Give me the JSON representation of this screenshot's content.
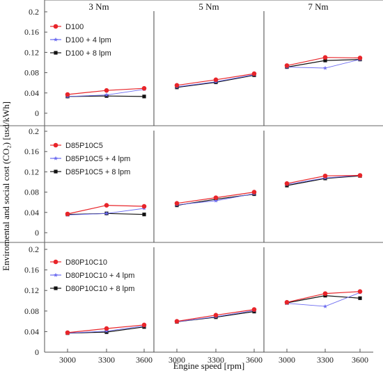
{
  "chart_data": {
    "type": "line",
    "ylabel": "Enviromental and social cost (CO₂) [usd/kWh]",
    "xlabel": "Engine speed [rpm]",
    "column_titles": [
      "3 Nm",
      "5 Nm",
      "7 Nm"
    ],
    "x_ticks": [
      "3000",
      "3300",
      "3600"
    ],
    "y_ticks": [
      "0",
      "0.04",
      "0.08",
      "0.12",
      "0.16",
      "0.2"
    ],
    "ylim": [
      0,
      0.2
    ],
    "legend_position": "top-left",
    "series_colors": [
      "#e8252a",
      "#6b6bf0",
      "#111111"
    ],
    "series_markers": [
      "circle",
      "star",
      "square"
    ],
    "panels": [
      {
        "series": [
          {
            "name": "D100",
            "groups": [
              [
                0.037,
                0.045,
                0.049
              ],
              [
                0.055,
                0.066,
                0.078
              ],
              [
                0.094,
                0.11,
                0.109
              ]
            ]
          },
          {
            "name": "D100 + 4 lpm",
            "groups": [
              [
                0.033,
                0.036,
                0.047
              ],
              [
                0.052,
                0.062,
                0.076
              ],
              [
                0.091,
                0.089,
                0.106
              ]
            ]
          },
          {
            "name": "D100 + 8 lpm",
            "groups": [
              [
                0.033,
                0.034,
                0.033
              ],
              [
                0.051,
                0.061,
                0.075
              ],
              [
                0.091,
                0.104,
                0.106
              ]
            ]
          }
        ]
      },
      {
        "series": [
          {
            "name": "D85P10C5",
            "groups": [
              [
                0.037,
                0.054,
                0.052
              ],
              [
                0.058,
                0.069,
                0.08
              ],
              [
                0.097,
                0.112,
                0.113
              ]
            ]
          },
          {
            "name": "D85P10C5 + 4 lpm",
            "groups": [
              [
                0.035,
                0.038,
                0.048
              ],
              [
                0.055,
                0.063,
                0.077
              ],
              [
                0.095,
                0.108,
                0.113
              ]
            ]
          },
          {
            "name": "D85P10C5 + 8 lpm",
            "groups": [
              [
                0.036,
                0.038,
                0.036
              ],
              [
                0.054,
                0.066,
                0.076
              ],
              [
                0.093,
                0.107,
                0.112
              ]
            ]
          }
        ]
      },
      {
        "series": [
          {
            "name": "D80P10C10",
            "groups": [
              [
                0.038,
                0.046,
                0.053
              ],
              [
                0.06,
                0.072,
                0.083
              ],
              [
                0.097,
                0.114,
                0.118
              ]
            ]
          },
          {
            "name": "D80P10C10 + 4 lpm",
            "groups": [
              [
                0.037,
                0.041,
                0.051
              ],
              [
                0.059,
                0.069,
                0.081
              ],
              [
                0.095,
                0.089,
                0.116
              ]
            ]
          },
          {
            "name": "D80P10C10 + 8 lpm",
            "groups": [
              [
                0.037,
                0.039,
                0.049
              ],
              [
                0.059,
                0.068,
                0.079
              ],
              [
                0.096,
                0.11,
                0.105
              ]
            ]
          }
        ]
      }
    ]
  }
}
